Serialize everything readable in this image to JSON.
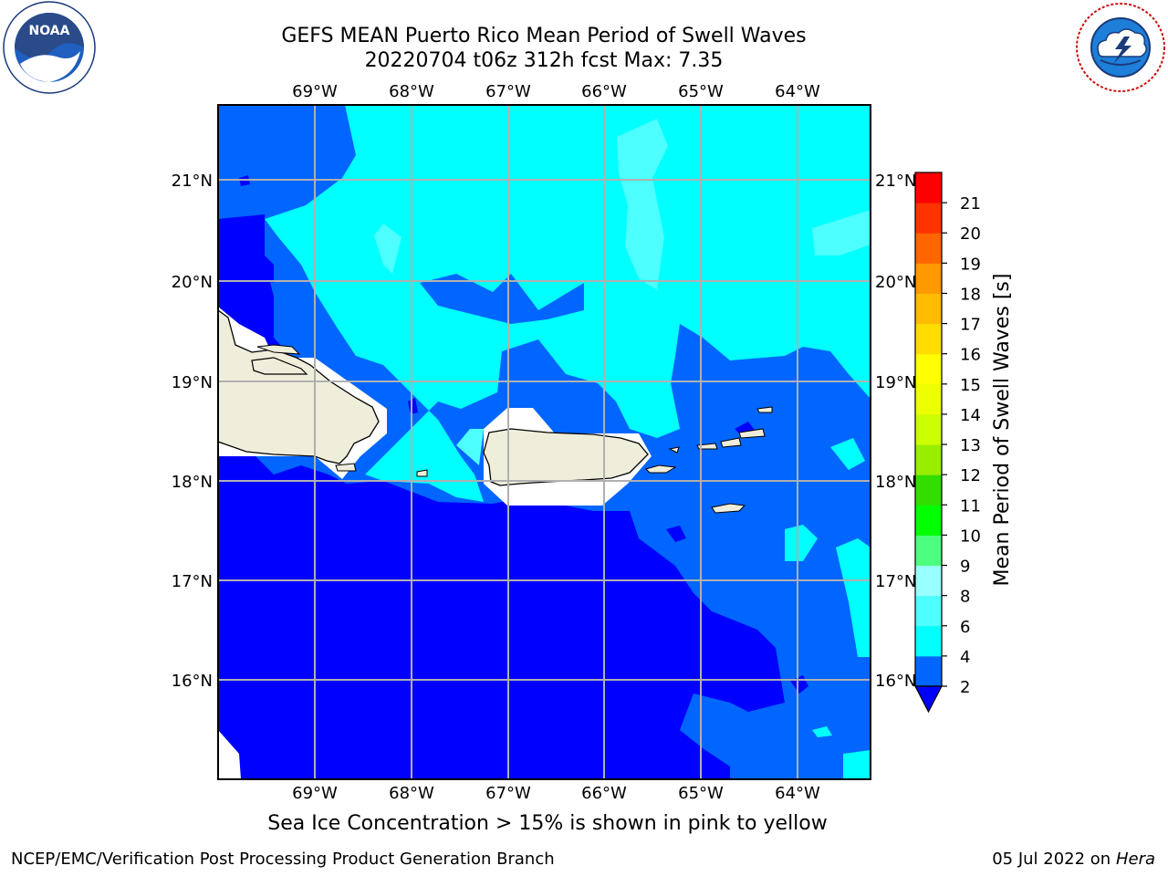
{
  "title": {
    "line1": "GEFS MEAN Puerto Rico Mean Period of Swell Waves",
    "line2": "20220704 t06z 312h fcst   Max: 7.35"
  },
  "logos": {
    "noara_text": "NOAA",
    "noaa_ring_text": "NATIONAL OCEANIC AND ATMOSPHERIC ADMINISTRATION · U.S. DEPARTMENT OF COMMERCE",
    "nws_ring_text": "NATIONAL WEATHER SERVICE"
  },
  "map": {
    "lon_labels": [
      "69°W",
      "68°W",
      "67°W",
      "66°W",
      "65°W",
      "64°W"
    ],
    "lat_labels": [
      "21°N",
      "20°N",
      "19°N",
      "18°N",
      "17°N",
      "16°N"
    ],
    "extent": {
      "lon_min": -70.0,
      "lon_max": -63.25,
      "lat_min": 15.0,
      "lat_max": 21.75
    },
    "land_color": "#efeedb",
    "no_data_color": "#ffffff"
  },
  "colorbar": {
    "label": "Mean Period of Swell Waves [s]",
    "ticks": [
      "2",
      "4",
      "6",
      "8",
      "9",
      "10",
      "11",
      "12",
      "13",
      "14",
      "15",
      "16",
      "17",
      "18",
      "19",
      "20",
      "21"
    ],
    "under_color": "#0000ff",
    "colors": [
      "#0066ff",
      "#00ffff",
      "#4dffff",
      "#99ffff",
      "#4dff80",
      "#00ff00",
      "#33dd00",
      "#99ee00",
      "#ccff00",
      "#eeff00",
      "#ffff00",
      "#ffdd00",
      "#ffbb00",
      "#ff9900",
      "#ff6600",
      "#ff3300",
      "#ff0000"
    ]
  },
  "caption": "Sea Ice Concentration > 15% is shown in pink to yellow",
  "footer": {
    "left": "NCEP/EMC/Verification Post Processing Product Generation Branch",
    "right_date": "05 Jul 2022 on ",
    "right_host": "Hera"
  }
}
